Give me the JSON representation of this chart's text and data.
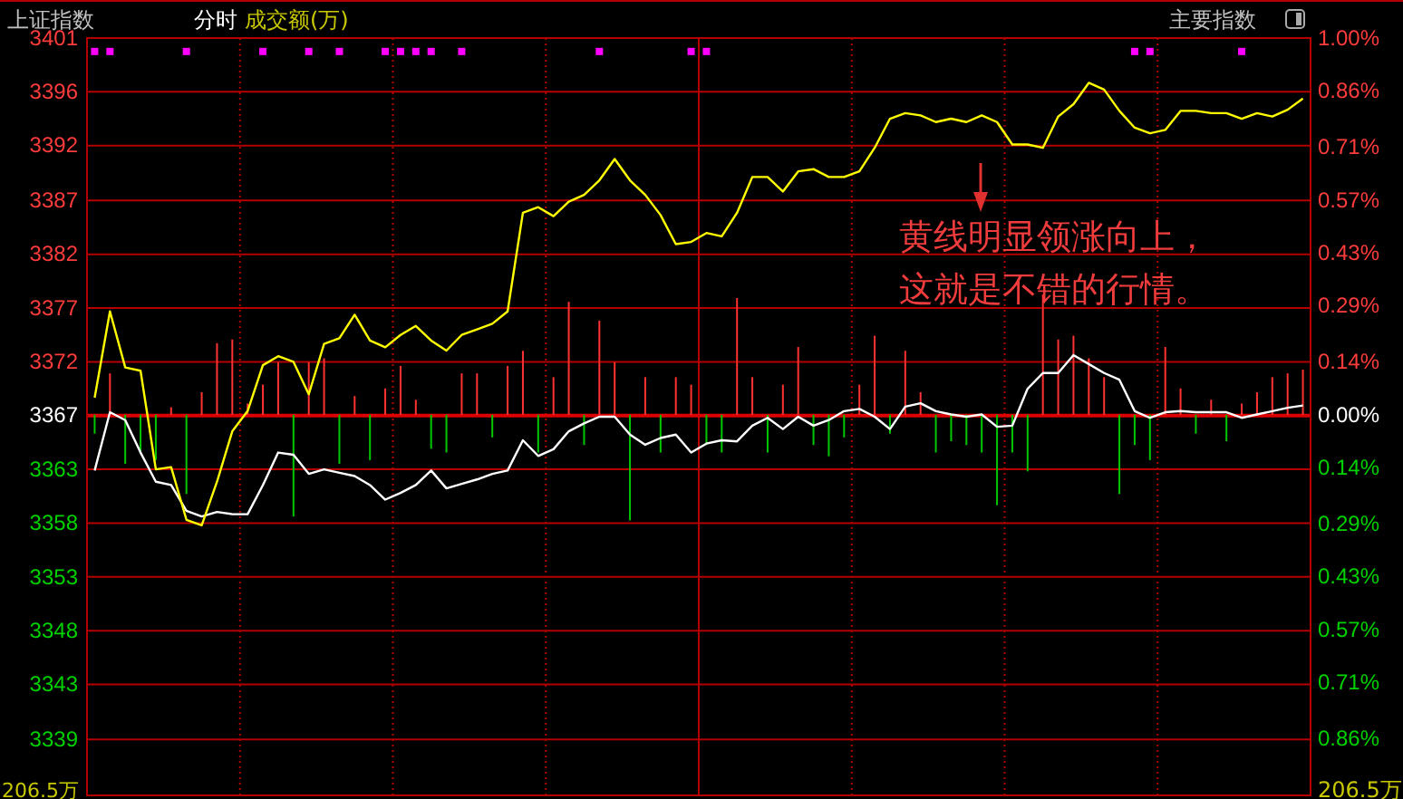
{
  "chart_data": {
    "type": "line",
    "title": "上证指数",
    "subtitle": "分时",
    "annotations": [
      "成交额(万)",
      "主要指数",
      "206.5万",
      "206.5万",
      "黄线明显领涨向上，",
      "这就是不错的行情。"
    ],
    "categories": [
      null,
      null,
      null,
      null,
      null,
      null,
      null,
      null,
      null,
      null,
      null,
      null,
      null,
      null,
      null,
      null,
      null,
      null,
      null,
      null,
      null,
      null,
      null,
      null,
      null,
      null,
      null,
      null,
      null,
      null,
      null,
      null,
      null,
      null,
      null,
      null,
      null,
      null,
      null,
      null,
      null,
      null,
      null,
      null,
      null,
      null,
      null,
      null,
      null,
      null,
      null,
      null,
      null,
      null,
      null,
      null,
      null,
      null,
      null,
      null,
      null,
      null,
      null,
      null,
      null,
      null,
      null,
      null,
      null,
      null,
      null,
      null,
      null,
      null,
      null,
      null,
      null,
      null,
      null,
      null
    ],
    "series": [
      {
        "type": "bar",
        "axis": "y2",
        "colors": [
          "#00c800",
          "#ff3232",
          "#00c800",
          "#00c800",
          "#00c800",
          "#ff3232",
          "#00c800",
          "#ff3232",
          "#ff3232",
          "#ff3232",
          "#ff3232",
          "#ff3232",
          "#ff3232",
          "#00c800",
          "#ff3232",
          "#ff3232",
          "#00c800",
          "#ff3232",
          "#00c800",
          "#ff3232",
          "#ff3232",
          "#ff3232",
          "#00c800",
          "#00c800",
          "#ff3232",
          "#ff3232",
          "#00c800",
          "#ff3232",
          "#ff3232",
          "#00c800",
          "#ff3232",
          "#ff3232",
          "#00c800",
          "#ff3232",
          "#ff3232",
          "#00c800",
          "#ff3232",
          "#00c800",
          "#ff3232",
          "#ff3232",
          "#00c800",
          "#00c800",
          "#ff3232",
          "#ff3232",
          "#00c800",
          "#ff3232",
          "#ff3232",
          "#00c800",
          "#00c800",
          "#00c800",
          "#ff3232",
          "#ff3232",
          "#00c800",
          "#ff3232",
          "#ff3232",
          "#00c800",
          "#00c800",
          "#00c800",
          "#00c800",
          "#00c800",
          "#00c800",
          "#00c800",
          "#ff3232",
          "#ff3232",
          "#ff3232",
          "#ff3232",
          "#ff3232",
          "#00c800",
          "#00c800",
          "#00c800",
          "#ff3232",
          "#ff3232",
          "#00c800",
          "#ff3232",
          "#00c800",
          "#ff3232",
          "#ff3232",
          "#ff3232",
          "#ff3232",
          "#ff3232"
        ],
        "values": [
          -0.05,
          0.11,
          -0.13,
          -0.1,
          -0.12,
          0.02,
          -0.21,
          0.06,
          0.19,
          0.2,
          0.03,
          0.08,
          0.14,
          -0.27,
          0.14,
          0.15,
          -0.13,
          0.05,
          -0.12,
          0.07,
          0.13,
          0.04,
          -0.09,
          -0.1,
          0.11,
          0.11,
          -0.06,
          0.13,
          0.17,
          -0.1,
          0.1,
          0.3,
          -0.08,
          0.25,
          0.14,
          -0.28,
          0.1,
          -0.1,
          0.1,
          0.08,
          -0.08,
          -0.1,
          0.31,
          0.1,
          -0.1,
          0.08,
          0.18,
          -0.08,
          -0.11,
          -0.06,
          0.08,
          0.21,
          -0.05,
          0.17,
          0.06,
          -0.1,
          -0.07,
          -0.08,
          -0.1,
          -0.24,
          -0.1,
          -0.15,
          0.32,
          0.2,
          0.21,
          0.15,
          0.1,
          -0.21,
          -0.08,
          -0.12,
          0.18,
          0.07,
          -0.05,
          0.04,
          -0.07,
          0.03,
          0.06,
          0.1,
          0.11,
          0.12
        ]
      },
      {
        "color": "#ffffff",
        "values": [
          3362.5,
          3367.7,
          3367.0,
          3364.1,
          3361.5,
          3361.2,
          3358.9,
          3358.4,
          3358.8,
          3358.6,
          3358.6,
          3361.2,
          3364.1,
          3363.9,
          3362.2,
          3362.6,
          3362.3,
          3362.0,
          3361.2,
          3359.9,
          3360.5,
          3361.2,
          3362.5,
          3360.9,
          3361.3,
          3361.7,
          3362.2,
          3362.5,
          3365.2,
          3363.8,
          3364.4,
          3366.0,
          3366.7,
          3367.3,
          3367.3,
          3365.7,
          3364.8,
          3365.4,
          3365.7,
          3364.1,
          3364.9,
          3365.2,
          3365.1,
          3366.5,
          3367.2,
          3366.2,
          3367.3,
          3366.5,
          3367.0,
          3367.8,
          3368.0,
          3367.3,
          3366.2,
          3368.2,
          3368.5,
          3367.8,
          3367.5,
          3367.3,
          3367.5,
          3366.4,
          3366.5,
          3369.8,
          3371.2,
          3371.2,
          3372.8,
          3372.0,
          3371.2,
          3370.6,
          3367.8,
          3367.2,
          3367.7,
          3367.8,
          3367.7,
          3367.7,
          3367.7,
          3367.2,
          3367.5,
          3367.8,
          3368.1,
          3368.3
        ]
      },
      {
        "color": "#ffff00",
        "values": [
          3369.0,
          3376.7,
          3371.7,
          3371.4,
          3362.6,
          3362.8,
          3358.1,
          3357.6,
          3361.5,
          3366.0,
          3367.8,
          3371.9,
          3372.7,
          3372.2,
          3369.3,
          3373.8,
          3374.3,
          3376.4,
          3374.1,
          3373.5,
          3374.6,
          3375.4,
          3374.1,
          3373.2,
          3374.6,
          3375.1,
          3375.6,
          3376.7,
          3385.5,
          3386.0,
          3385.2,
          3386.5,
          3387.1,
          3388.4,
          3390.3,
          3388.4,
          3387.1,
          3385.3,
          3382.7,
          3382.9,
          3383.7,
          3383.4,
          3385.5,
          3388.7,
          3388.7,
          3387.4,
          3389.2,
          3389.4,
          3388.7,
          3388.7,
          3389.2,
          3391.3,
          3393.9,
          3394.4,
          3394.2,
          3393.6,
          3393.9,
          3393.6,
          3394.2,
          3393.6,
          3391.6,
          3391.6,
          3391.3,
          3394.1,
          3395.2,
          3397.1,
          3396.5,
          3394.6,
          3393.1,
          3392.6,
          3392.9,
          3394.6,
          3394.6,
          3394.4,
          3394.4,
          3393.9,
          3394.4,
          3394.1,
          3394.7,
          3395.7
        ]
      },
      {
        "type": "scatter",
        "color": "#ff00ff",
        "marker": "square",
        "values": [
          3399.9,
          3399.9,
          null,
          null,
          null,
          null,
          3399.9,
          null,
          null,
          null,
          null,
          3399.9,
          null,
          null,
          3399.9,
          null,
          3399.9,
          null,
          null,
          3399.9,
          3399.9,
          3399.9,
          3399.9,
          null,
          3399.9,
          null,
          null,
          null,
          null,
          null,
          null,
          null,
          null,
          3399.9,
          null,
          null,
          null,
          null,
          null,
          3399.9,
          3399.9,
          null,
          null,
          null,
          null,
          null,
          null,
          null,
          null,
          null,
          null,
          null,
          null,
          null,
          null,
          null,
          null,
          null,
          null,
          null,
          null,
          null,
          null,
          null,
          null,
          null,
          null,
          null,
          3399.9,
          3399.9,
          null,
          null,
          null,
          null,
          null,
          3399.9,
          null,
          null,
          null,
          null
        ]
      }
    ],
    "ylim": [
      3333.5,
      3401.1
    ],
    "yticks": [
      {
        "value": 3401.1,
        "label": "3401"
      },
      {
        "value": 3396.3,
        "label": "3396"
      },
      {
        "value": 3391.5,
        "label": "3392"
      },
      {
        "value": 3386.6,
        "label": "3387"
      },
      {
        "value": 3381.8,
        "label": "3382"
      },
      {
        "value": 3377.0,
        "label": "3377"
      },
      {
        "value": 3372.2,
        "label": "3372"
      },
      {
        "value": 3367.4,
        "label": "3367"
      },
      {
        "value": 3362.6,
        "label": "3363"
      },
      {
        "value": 3357.8,
        "label": "3358"
      },
      {
        "value": 3353.0,
        "label": "3353"
      },
      {
        "value": 3348.2,
        "label": "3348"
      },
      {
        "value": 3343.4,
        "label": "3343"
      },
      {
        "value": 3338.5,
        "label": "3339"
      }
    ],
    "y2lim": [
      -1.01,
      1.0
    ],
    "y2ticks": [
      {
        "value": 1.0,
        "label": "1.00%"
      },
      {
        "value": 0.86,
        "label": "0.86%"
      },
      {
        "value": 0.71,
        "label": "0.71%"
      },
      {
        "value": 0.57,
        "label": "0.57%"
      },
      {
        "value": 0.43,
        "label": "0.43%"
      },
      {
        "value": 0.29,
        "label": "0.29%"
      },
      {
        "value": 0.14,
        "label": "0.14%"
      },
      {
        "value": 0,
        "label": "0.00%"
      },
      {
        "value": -0.14,
        "label": "0.14%"
      },
      {
        "value": -0.29,
        "label": "0.29%"
      },
      {
        "value": -0.43,
        "label": "0.43%"
      },
      {
        "value": -0.57,
        "label": "0.57%"
      },
      {
        "value": -0.71,
        "label": "0.71%"
      },
      {
        "value": -0.86,
        "label": "0.86%"
      }
    ],
    "ref_lines": [
      {
        "axis": "y",
        "value": 3367.4,
        "color": "#dd0000"
      }
    ],
    "grid": true
  }
}
